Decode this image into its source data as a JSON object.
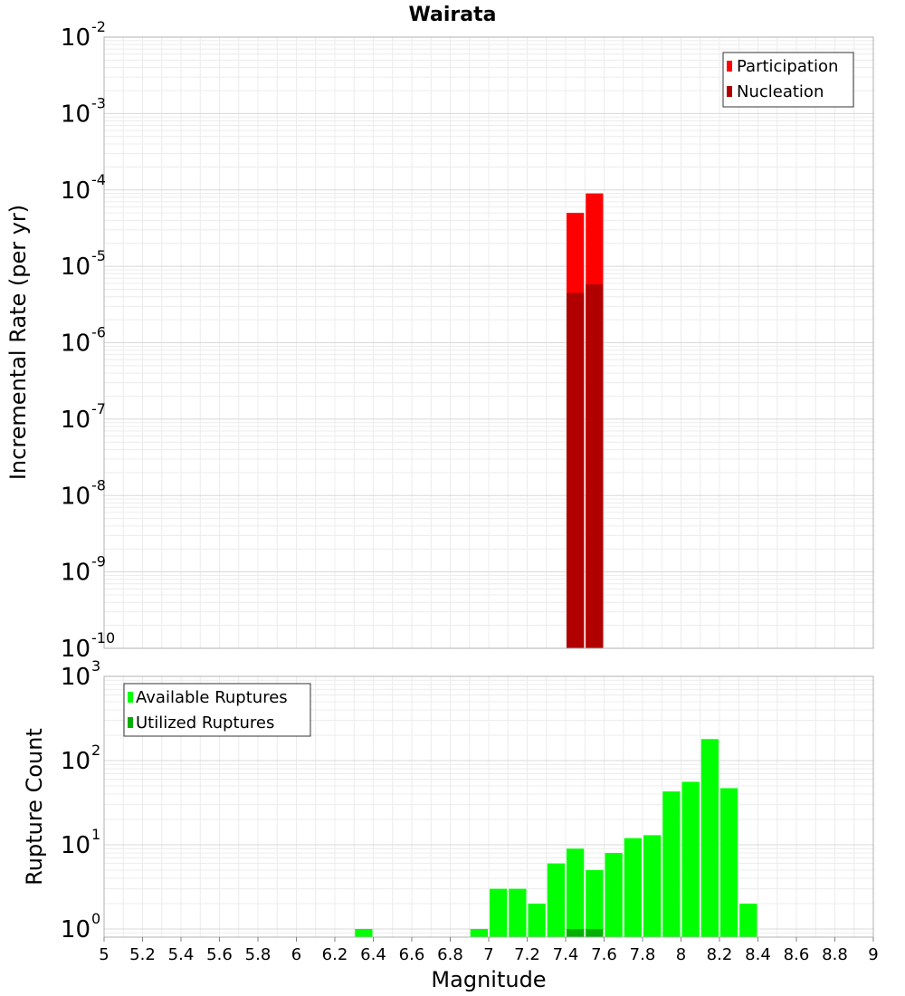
{
  "chart_data": [
    {
      "type": "bar",
      "title": "Wairata",
      "xlabel": "",
      "ylabel": "Incremental Rate (per yr)",
      "yscale": "log",
      "xlim": [
        5,
        9
      ],
      "ylim": [
        1e-10,
        0.01
      ],
      "ytick_labels": [
        {
          "base": "10",
          "exp": "-10",
          "value": 1e-10
        },
        {
          "base": "10",
          "exp": "-9",
          "value": 1e-09
        },
        {
          "base": "10",
          "exp": "-8",
          "value": 1e-08
        },
        {
          "base": "10",
          "exp": "-7",
          "value": 1e-07
        },
        {
          "base": "10",
          "exp": "-6",
          "value": 1e-06
        },
        {
          "base": "10",
          "exp": "-5",
          "value": 1e-05
        },
        {
          "base": "10",
          "exp": "-4",
          "value": 0.0001
        },
        {
          "base": "10",
          "exp": "-3",
          "value": 0.001
        },
        {
          "base": "10",
          "exp": "-2",
          "value": 0.01
        }
      ],
      "bar_width": 0.1,
      "series": [
        {
          "name": "Participation",
          "color": "#ff0000",
          "x": [
            7.45,
            7.55
          ],
          "values": [
            5e-05,
            9e-05
          ]
        },
        {
          "name": "Nucleation",
          "color": "#b00000",
          "x": [
            7.45,
            7.55
          ],
          "values": [
            4.5e-06,
            5.8e-06
          ]
        }
      ],
      "legend": "top-right"
    },
    {
      "type": "bar",
      "xlabel": "Magnitude",
      "ylabel": "Rupture Count",
      "yscale": "log",
      "xlim": [
        5,
        9
      ],
      "ylim": [
        0.8,
        1000
      ],
      "ytick_labels": [
        {
          "base": "10",
          "exp": "0",
          "value": 1
        },
        {
          "base": "10",
          "exp": "1",
          "value": 10
        },
        {
          "base": "10",
          "exp": "2",
          "value": 100
        },
        {
          "base": "10",
          "exp": "3",
          "value": 1000
        }
      ],
      "xtick_labels": [
        "5",
        "5.2",
        "5.4",
        "5.6",
        "5.8",
        "6",
        "6.2",
        "6.4",
        "6.6",
        "6.8",
        "7",
        "7.2",
        "7.4",
        "7.6",
        "7.8",
        "8",
        "8.2",
        "8.4",
        "8.6",
        "8.8",
        "9"
      ],
      "bar_width": 0.1,
      "series": [
        {
          "name": "Available Ruptures",
          "color": "#00ff00",
          "x": [
            6.35,
            6.95,
            7.05,
            7.15,
            7.25,
            7.35,
            7.45,
            7.55,
            7.65,
            7.75,
            7.85,
            7.95,
            8.05,
            8.15,
            8.25,
            8.35
          ],
          "values": [
            1,
            1,
            3,
            3,
            2,
            6,
            9,
            5,
            8,
            12,
            13,
            43,
            56,
            180,
            47,
            2
          ]
        },
        {
          "name": "Utilized Ruptures",
          "color": "#00b000",
          "x": [
            7.45,
            7.55
          ],
          "values": [
            1,
            1
          ]
        }
      ],
      "legend": "top-left"
    }
  ]
}
